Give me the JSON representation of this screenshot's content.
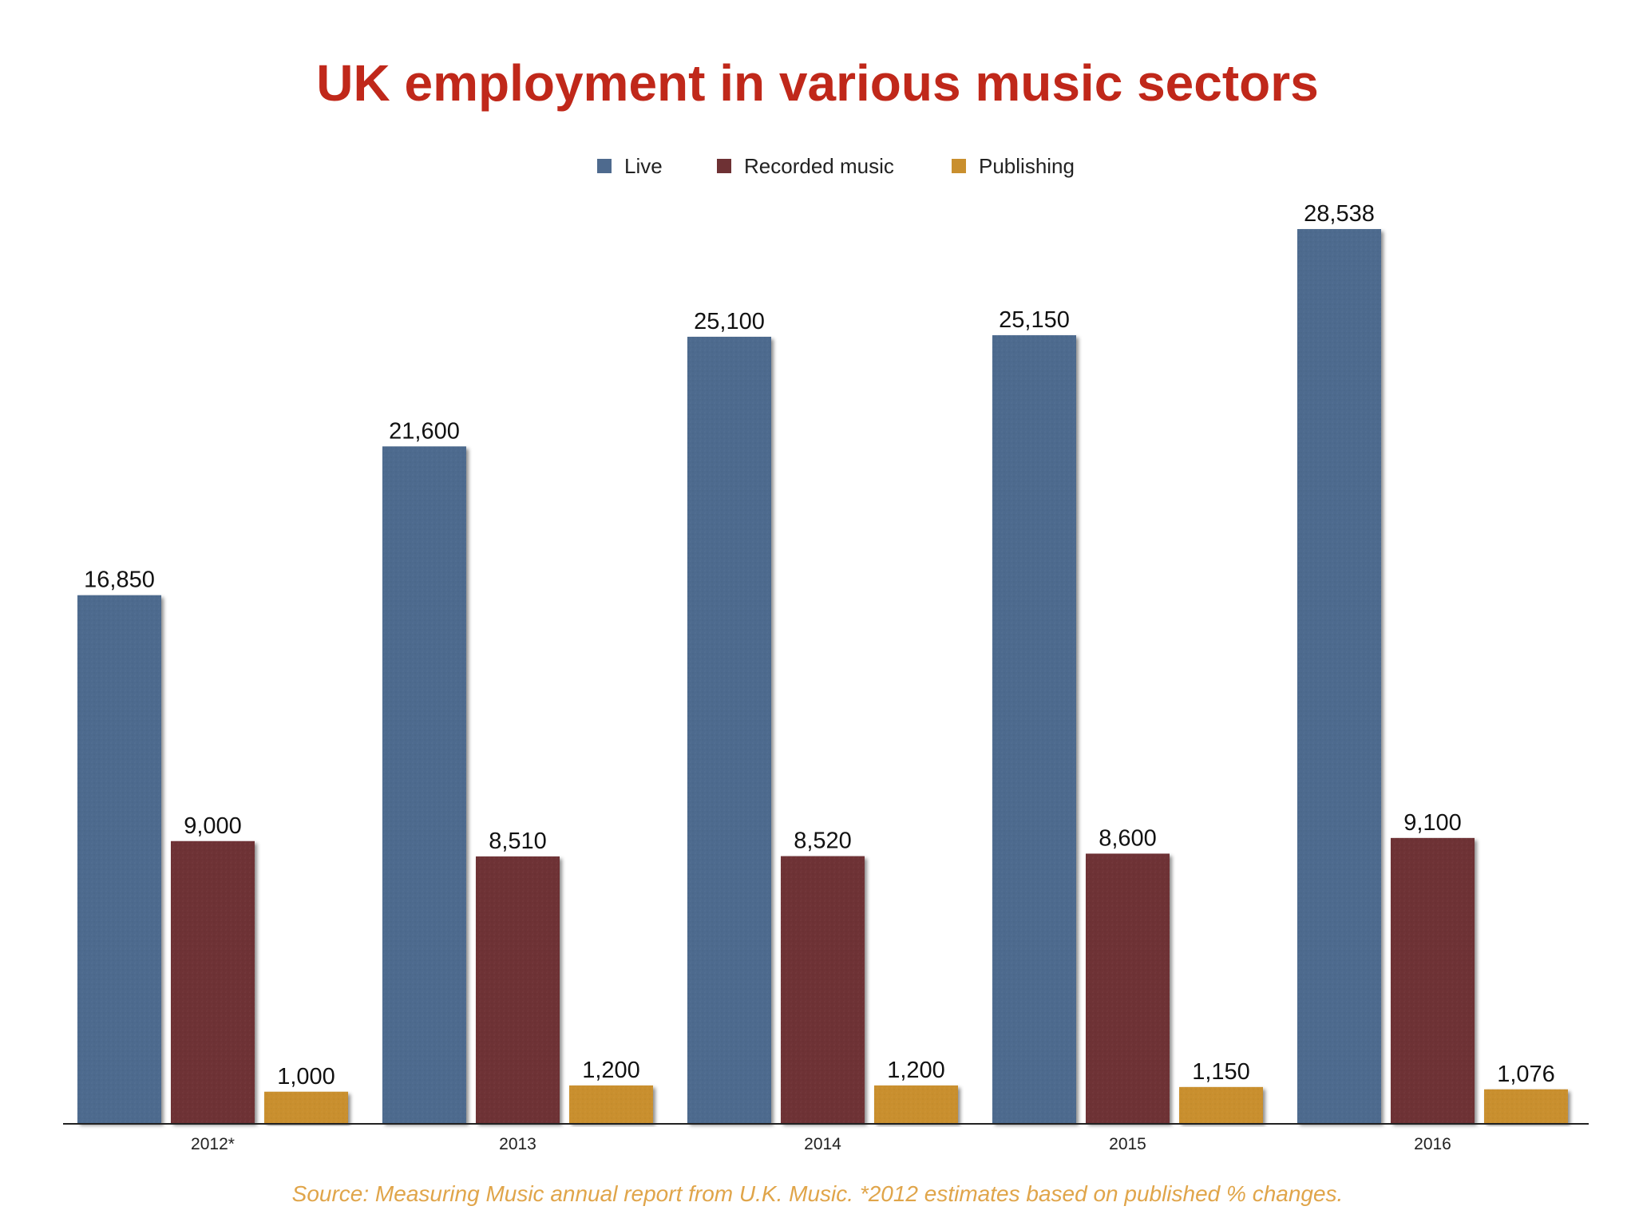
{
  "chart_data": {
    "type": "bar",
    "title": "UK employment in various music sectors",
    "categories": [
      "2012*",
      "2013",
      "2014",
      "2015",
      "2016"
    ],
    "series": [
      {
        "name": "Live",
        "color": "#4e6a8e",
        "values": [
          16850,
          21600,
          25100,
          25150,
          28538
        ],
        "labels": [
          "16,850",
          "21,600",
          "25,100",
          "25,150",
          "28,538"
        ]
      },
      {
        "name": "Recorded music",
        "color": "#6e3134",
        "values": [
          9000,
          8510,
          8520,
          8600,
          9100
        ],
        "labels": [
          "9,000",
          "8,510",
          "8,520",
          "8,600",
          "9,100"
        ]
      },
      {
        "name": "Publishing",
        "color": "#c98f2e",
        "values": [
          1000,
          1200,
          1200,
          1150,
          1076
        ],
        "labels": [
          "1,000",
          "1,200",
          "1,200",
          "1,150",
          "1,076"
        ]
      }
    ],
    "ylim": [
      0,
      30000
    ],
    "xlabel": "",
    "ylabel": "",
    "grid": false,
    "legend": "top-center",
    "source": "Source: Measuring Music annual report from U.K. Music. *2012 estimates based on published % changes."
  }
}
